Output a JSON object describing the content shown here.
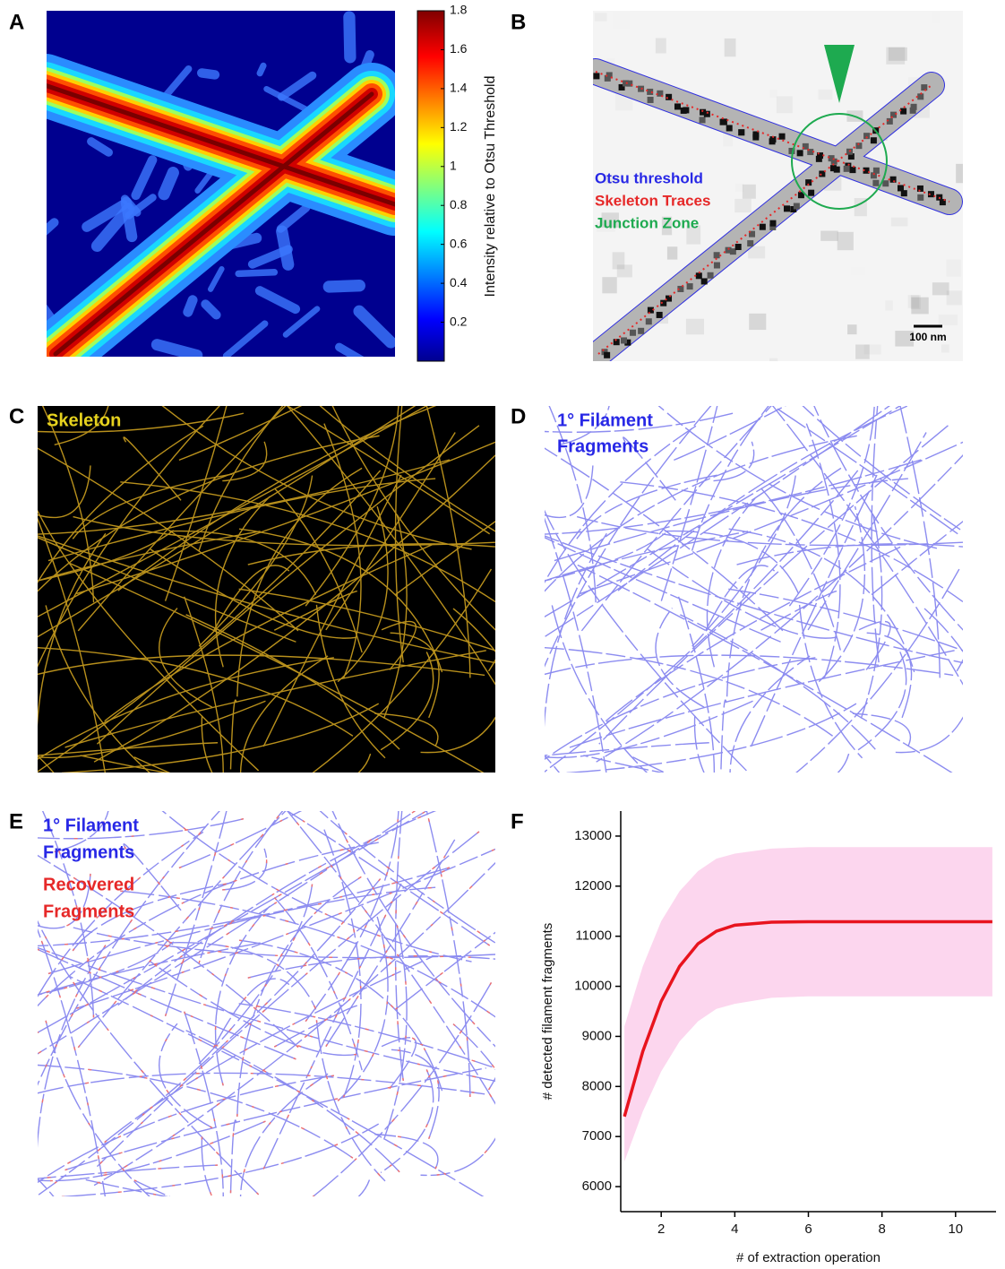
{
  "panel_labels": [
    "A",
    "B",
    "C",
    "D",
    "E",
    "F"
  ],
  "colorbar": {
    "label": "Intensity relative to Otsu Threshold",
    "lim": [
      0,
      1.8
    ],
    "ticks": [
      0.2,
      0.4,
      0.6,
      0.8,
      1,
      1.2,
      1.4,
      1.6,
      1.8
    ]
  },
  "panel_b": {
    "legend": [
      "Otsu threshold",
      "Skeleton Traces",
      "Junction Zone"
    ],
    "scale_bar": "100 nm"
  },
  "panel_c": {
    "label": "Skeleton"
  },
  "panel_d": {
    "label": [
      "1° Filament",
      "Fragments"
    ]
  },
  "panel_e": {
    "labels": [
      "1° Filament",
      "Fragments",
      "Recovered",
      "Fragments"
    ]
  },
  "chart_data": {
    "type": "line",
    "xlabel": "# of extraction operation",
    "ylabel": "# detected filament fragments",
    "x": [
      1,
      1.5,
      2,
      2.5,
      3,
      3.5,
      4,
      5,
      6,
      7,
      8,
      9,
      10,
      11
    ],
    "series": [
      {
        "color": "#e8141e",
        "values": [
          7400,
          8700,
          9700,
          10400,
          10850,
          11100,
          11220,
          11280,
          11290,
          11290,
          11290,
          11290,
          11290,
          11290
        ]
      }
    ],
    "band": {
      "color": "#fcd6ee",
      "lower": [
        6500,
        7500,
        8300,
        8900,
        9300,
        9550,
        9650,
        9770,
        9800,
        9800,
        9800,
        9800,
        9800,
        9800
      ],
      "upper": [
        9200,
        10400,
        11300,
        11900,
        12300,
        12550,
        12650,
        12750,
        12780,
        12780,
        12780,
        12780,
        12780,
        12780
      ]
    },
    "xlim": [
      0.9,
      11.1
    ],
    "ylim": [
      5500,
      13500
    ],
    "xticks": [
      2,
      4,
      6,
      8,
      10
    ],
    "yticks": [
      6000,
      7000,
      8000,
      9000,
      10000,
      11000,
      12000,
      13000
    ]
  }
}
